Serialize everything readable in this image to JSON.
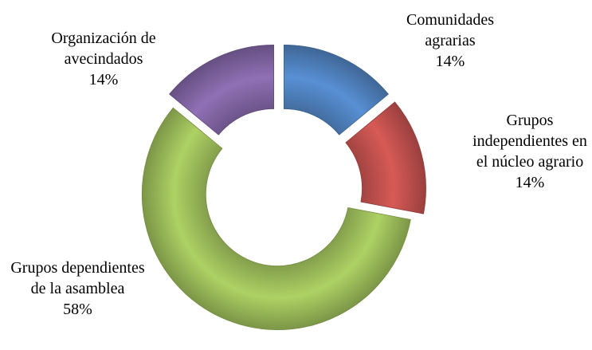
{
  "chart_data": {
    "type": "donut",
    "categories": [
      "Comunidades agrarias",
      "Grupos independientes en el núcleo agrario",
      "Grupos dependientes de la asamblea",
      "Organización de avecindados"
    ],
    "values": [
      14,
      14,
      58,
      14
    ],
    "value_labels": [
      "14%",
      "14%",
      "58%",
      "14%"
    ],
    "colors": [
      "#4f81bd",
      "#c0504d",
      "#9bbb59",
      "#8064a2"
    ]
  }
}
